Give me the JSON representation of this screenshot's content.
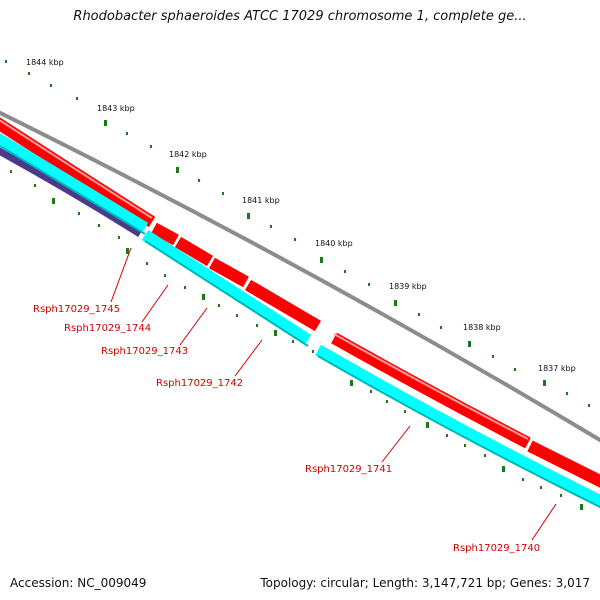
{
  "title": "Rhodobacter sphaeroides ATCC 17029 chromosome 1, complete ge...",
  "footer": {
    "accession": "Accession: NC_009049",
    "summary": "Topology: circular; Length: 3,147,721 bp; Genes: 3,017"
  },
  "colors": {
    "backbone": "#8c8c8c",
    "cds_forward": "#ff0000",
    "cds_reverse": "#00ffff",
    "gene_label": "#d40000",
    "ticks": "#1a7a1a",
    "dark_track": "#4b3a8c"
  },
  "kbp_labels": [
    "1844 kbp",
    "1843 kbp",
    "1842 kbp",
    "1841 kbp",
    "1840 kbp",
    "1839 kbp",
    "1838 kbp",
    "1837 kbp"
  ],
  "gene_labels": [
    "Rsph17029_1745",
    "Rsph17029_1744",
    "Rsph17029_1743",
    "Rsph17029_1742",
    "Rsph17029_1741",
    "Rsph17029_1740"
  ]
}
